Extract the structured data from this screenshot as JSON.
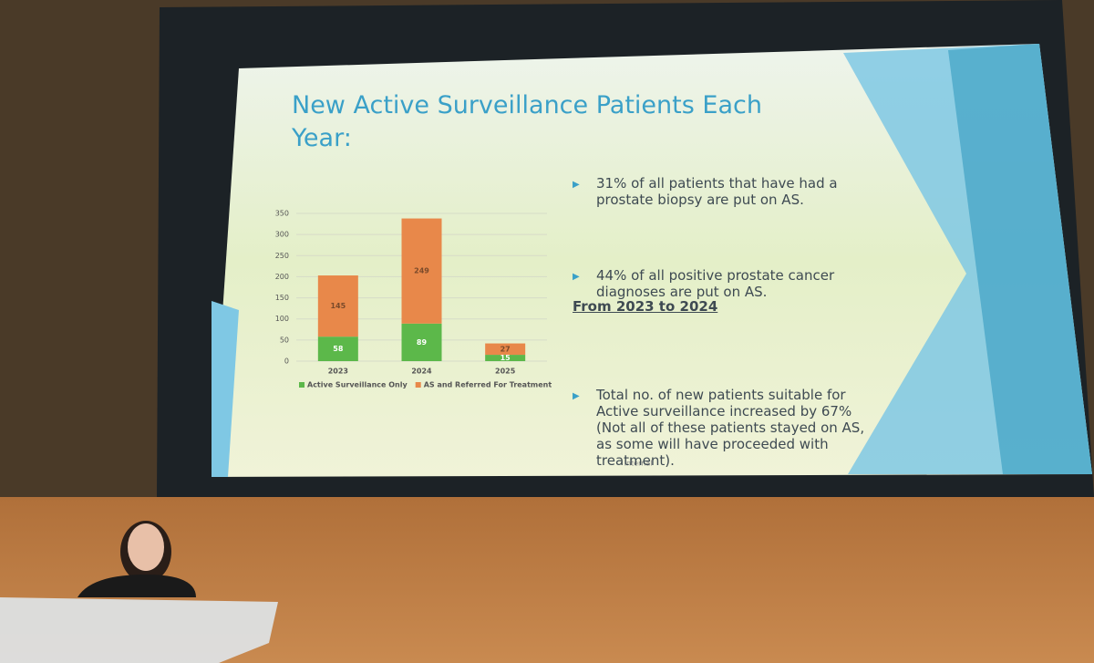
{
  "slide": {
    "title": "New Active Surveillance Patients Each Year:",
    "bullets": [
      "31% of all patients that have had a prostate biopsy are put on AS.",
      "44% of all positive prostate cancer diagnoses are put on AS."
    ],
    "heading": "From 2023 to 2024",
    "detail_bullet": "Total no. of new patients suitable for Active surveillance increased by 67% (Not all of these patients stayed on AS, as some will have proceeded with treatment).",
    "footer": "Internal"
  },
  "chart_data": {
    "type": "stacked-bar",
    "categories": [
      "2023",
      "2024",
      "2025"
    ],
    "series": [
      {
        "name": "Active Surveillance Only",
        "color": "#5cb84a",
        "values": [
          58,
          89,
          15
        ]
      },
      {
        "name": "AS and Referred For Treatment",
        "color": "#e8884a",
        "values": [
          145,
          249,
          27
        ]
      }
    ],
    "ylim": [
      0,
      350
    ],
    "yticks": [
      0,
      50,
      100,
      150,
      200,
      250,
      300,
      350
    ],
    "grid": true,
    "legend": "bottom"
  }
}
